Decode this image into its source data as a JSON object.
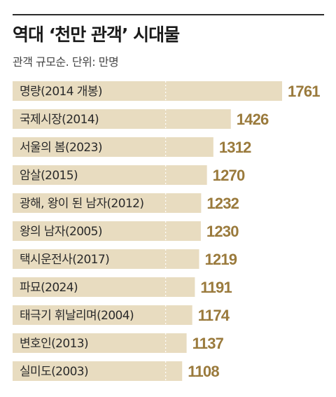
{
  "chart_data": {
    "type": "bar",
    "orientation": "horizontal",
    "title": "역대 ‘천만 관객’ 시대물",
    "subtitle": "관객 규모순. 단위: 만명",
    "categories": [
      "명량(2014 개봉)",
      "국제시장(2014)",
      "서울의 봄(2023)",
      "암살(2015)",
      "광해, 왕이 된 남자(2012)",
      "왕의 남자(2005)",
      "택시운전사(2017)",
      "파묘(2024)",
      "태극기 휘날리며(2004)",
      "변호인(2013)",
      "실미도(2003)"
    ],
    "values": [
      1761,
      1426,
      1312,
      1270,
      1232,
      1230,
      1219,
      1191,
      1174,
      1137,
      1108
    ],
    "value_labels": [
      "1761",
      "1426",
      "1312",
      "1270",
      "1232",
      "1230",
      "1219",
      "1191",
      "1174",
      "1137",
      "1108"
    ],
    "xlim": [
      0,
      1761
    ],
    "reference_line": 1000,
    "grid": false,
    "colors": {
      "bar": "#e8dcc0",
      "value_text": "#9a7a3c",
      "reference_line": "#ffffff",
      "rule": "#2b2b2b"
    }
  }
}
